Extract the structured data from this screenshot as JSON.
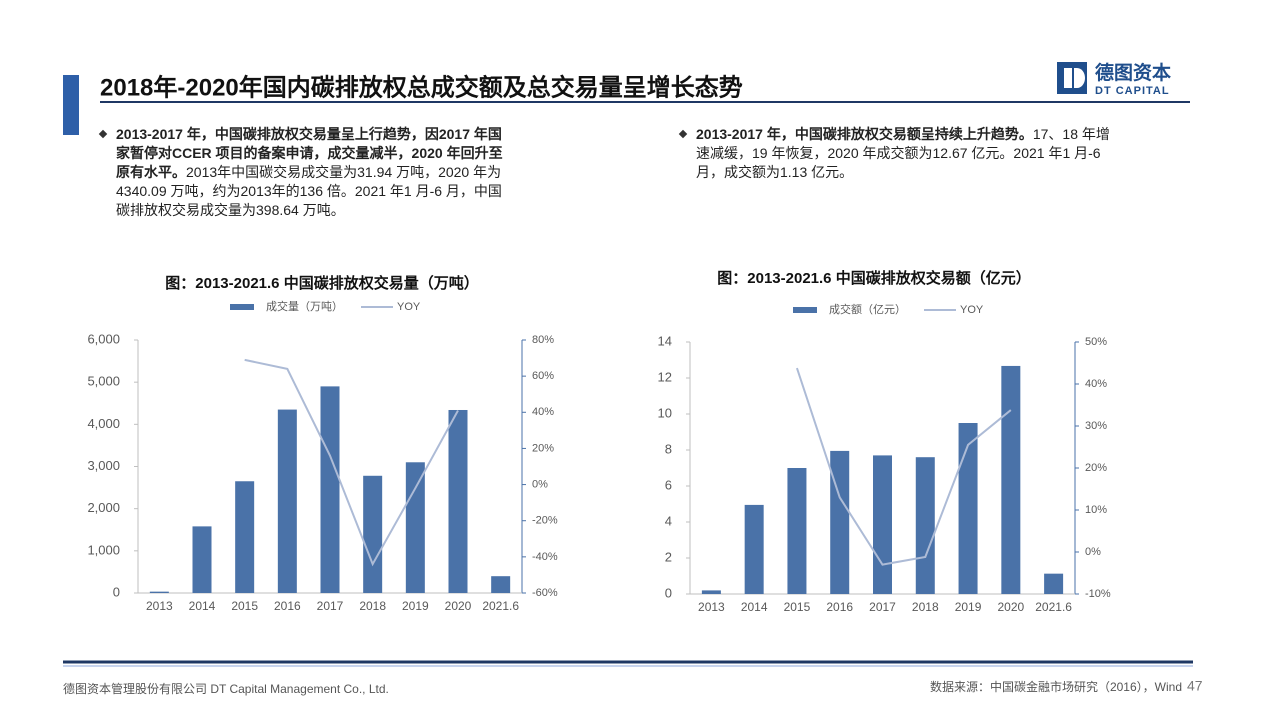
{
  "header": {
    "title": "2018年-2020年国内碳排放权总成交额及总交易量呈增长态势",
    "logo_cn": "德图资本",
    "logo_en": "DT CAPITAL"
  },
  "bullets": [
    {
      "bold": "2013-2017 年，中国碳排放权交易量呈上行趋势，因2017 年国家暂停对CCER 项目的备案申请，成交量减半，2020 年回升至原有水平。",
      "text": "2013年中国碳交易成交量为31.94 万吨，2020 年为4340.09 万吨，约为2013年的136 倍。2021 年1 月-6 月，中国碳排放权交易成交量为398.64 万吨。"
    },
    {
      "bold": "2013-2017 年，中国碳排放权交易额呈持续上升趋势。",
      "text": "17、18 年增速减缓，19 年恢复，2020 年成交额为12.67 亿元。2021 年1 月-6月，成交额为1.13 亿元。"
    }
  ],
  "chart_data": [
    {
      "type": "bar",
      "title": "图：2013-2021.6 中国碳排放权交易量（万吨）",
      "categories": [
        "2013",
        "2014",
        "2015",
        "2016",
        "2017",
        "2018",
        "2019",
        "2020",
        "2021.6"
      ],
      "series": [
        {
          "name": "成交量（万吨）",
          "color": "#4a72a8",
          "values": [
            31.94,
            1580,
            2650,
            4350,
            4900,
            2780,
            3100,
            4340.09,
            398.64
          ]
        },
        {
          "name": "YOY",
          "type": "line",
          "axis": "y2",
          "color": "#adbbd6",
          "values": [
            null,
            null,
            69,
            64,
            16,
            -44,
            -2,
            41,
            null
          ]
        }
      ],
      "ylim": [
        0,
        6000
      ],
      "yticks": [
        0,
        {
          "value": 1000,
          "label": "1,000"
        },
        {
          "value": 2000,
          "label": "2,000"
        },
        {
          "value": 3000,
          "label": "3,000"
        },
        {
          "value": 4000,
          "label": "4,000"
        },
        {
          "value": 5000,
          "label": "5,000"
        },
        {
          "value": 6000,
          "label": "6,000"
        }
      ],
      "y2lim": [
        -60,
        80
      ],
      "y2ticks": [
        {
          "value": -60,
          "label": "-60%"
        },
        {
          "value": -40,
          "label": "-40%"
        },
        {
          "value": -20,
          "label": "-20%"
        },
        {
          "value": 0,
          "label": "0%"
        },
        {
          "value": 20,
          "label": "20%"
        },
        {
          "value": 40,
          "label": "40%"
        },
        {
          "value": 60,
          "label": "60%"
        },
        {
          "value": 80,
          "label": "80%"
        }
      ]
    },
    {
      "type": "bar",
      "title": "图：2013-2021.6 中国碳排放权交易额（亿元）",
      "categories": [
        "2013",
        "2014",
        "2015",
        "2016",
        "2017",
        "2018",
        "2019",
        "2020",
        "2021.6"
      ],
      "series": [
        {
          "name": "成交额（亿元）",
          "color": "#4a72a8",
          "values": [
            0.2,
            4.95,
            7.0,
            7.95,
            7.7,
            7.6,
            9.5,
            12.67,
            1.13
          ]
        },
        {
          "name": "YOY",
          "type": "line",
          "axis": "y2",
          "color": "#adbbd6",
          "values": [
            null,
            null,
            43.8,
            13,
            -3,
            -1.2,
            25.5,
            33.8,
            null
          ]
        }
      ],
      "ylim": [
        0,
        14
      ],
      "yticks": [
        0,
        2,
        4,
        6,
        8,
        10,
        12,
        14
      ],
      "y2lim": [
        -10,
        50
      ],
      "y2ticks": [
        {
          "value": -10,
          "label": "-10%"
        },
        {
          "value": 0,
          "label": "0%"
        },
        {
          "value": 10,
          "label": "10%"
        },
        {
          "value": 20,
          "label": "20%"
        },
        {
          "value": 30,
          "label": "30%"
        },
        {
          "value": 40,
          "label": "40%"
        },
        {
          "value": 50,
          "label": "50%"
        }
      ]
    }
  ],
  "footer": {
    "company": "德图资本管理股份有限公司  DT Capital Management  Co., Ltd.",
    "source": "数据来源：中国碳金融市场研究（2016），Wind",
    "page": "47"
  }
}
